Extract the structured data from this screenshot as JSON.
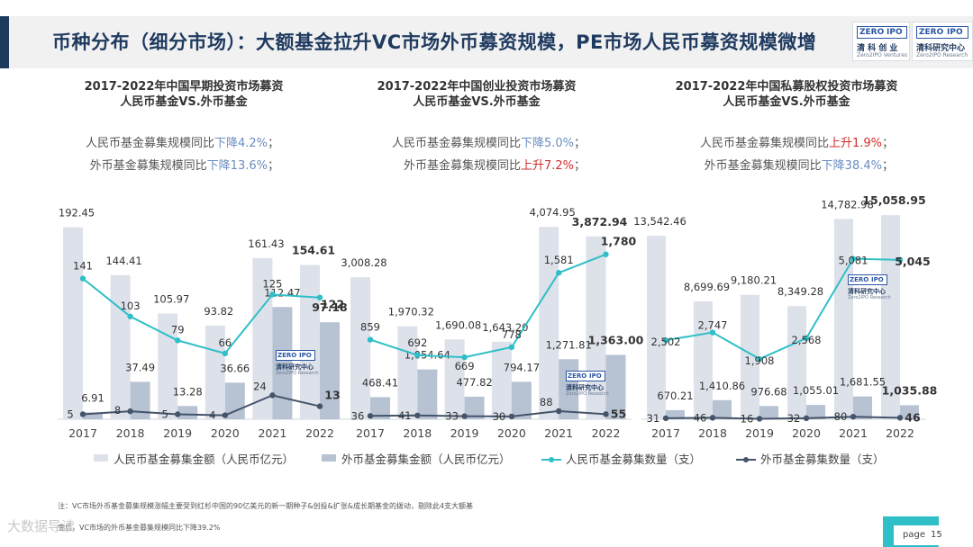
{
  "page": {
    "title": "币种分布（细分市场）：大额基金拉升VC市场外币募资规模，PE市场人民币募资规模微增",
    "page_label": "page",
    "page_number": "15",
    "watermark": "大数据导读"
  },
  "logos": {
    "left": {
      "word_a": "ZERO",
      "word_b": "IPO",
      "cn": "清 科 创 业",
      "en": "Zero2IPO Ventures"
    },
    "right": {
      "word_a": "ZERO",
      "word_b": "IPO",
      "cn": "清科研究中心",
      "en": "Zero2IPO Research"
    },
    "chart": {
      "word_a": "ZERO",
      "word_b": "IPO",
      "cn": "清科研究中心",
      "en": "Zero2IPO Research"
    }
  },
  "colors": {
    "bar_rmb": "#dde1ea",
    "bar_usd": "#b7c2d3",
    "line_rmb": "#2fbfc8",
    "line_usd": "#44546a",
    "title": "#1f3a5f",
    "up": "#d22c2c",
    "down": "#6a8dc1"
  },
  "legend": [
    {
      "label": "人民币基金募集金额（人民币亿元）"
    },
    {
      "label": "外币基金募集金额（人民币亿元）"
    },
    {
      "label": "人民币基金募集数量（支）"
    },
    {
      "label": "外币基金募集数量（支）"
    }
  ],
  "notes": {
    "note1": "注：VC市场外币基金募集规模涨幅主要受到红杉中国的90亿美元的新一期种子&创投&扩张&成长期基金的拨动，剔除此4支大额基",
    "note2": "金后，VC市场的外币基金募集规模同比下降39.2%"
  },
  "chart_data": [
    {
      "type": "bar",
      "title_line1": "2017-2022年中国早期投资市场募资",
      "title_line2": "人民币基金VS.外币基金",
      "stat1": {
        "prefix": "人民币基金募集规模同比",
        "change": "下降4.2%",
        "direction": "down",
        "suffix": "；"
      },
      "stat2": {
        "prefix": "外币基金募集规模同比",
        "change": "下降13.6%",
        "direction": "down",
        "suffix": "；"
      },
      "categories": [
        "2017",
        "2018",
        "2019",
        "2020",
        "2021",
        "2022"
      ],
      "series": [
        {
          "name": "人民币基金募集金额（人民币亿元）",
          "kind": "bar",
          "values": [
            192.45,
            144.41,
            105.97,
            93.82,
            161.43,
            154.61
          ],
          "labels": [
            "192.45",
            "144.41",
            "105.97",
            "93.82",
            "161.43",
            "154.61"
          ]
        },
        {
          "name": "外币基金募集金额（人民币亿元）",
          "kind": "bar",
          "values": [
            6.91,
            37.49,
            13.28,
            36.66,
            112.47,
            97.18
          ],
          "labels": [
            "6.91",
            "37.49",
            "13.28",
            "36.66",
            "112.47",
            "97.18"
          ]
        },
        {
          "name": "人民币基金募集数量（支）",
          "kind": "line",
          "values": [
            141,
            103,
            79,
            66,
            125,
            122
          ],
          "labels": [
            "141",
            "103",
            "79",
            "66",
            "125",
            "122"
          ]
        },
        {
          "name": "外币基金募集数量（支）",
          "kind": "line",
          "values": [
            5,
            8,
            5,
            4,
            24,
            13
          ],
          "labels": [
            "5",
            "8",
            "5",
            "4",
            "24",
            "13"
          ]
        }
      ],
      "bar_ylim": [
        0,
        220
      ],
      "line_ylim": [
        0,
        220
      ]
    },
    {
      "type": "bar",
      "title_line1": "2017-2022年中国创业投资市场募资",
      "title_line2": "人民币基金VS.外币基金",
      "stat1": {
        "prefix": "人民币基金募集规模同比",
        "change": "下降5.0%",
        "direction": "down",
        "suffix": "；"
      },
      "stat2": {
        "prefix": "外币基金募集规模同比",
        "change": "上升7.2%",
        "direction": "up",
        "suffix": "；"
      },
      "categories": [
        "2017",
        "2018",
        "2019",
        "2020",
        "2021",
        "2022"
      ],
      "series": [
        {
          "name": "人民币基金募集金额（人民币亿元）",
          "kind": "bar",
          "values": [
            3008.28,
            1970.32,
            1690.08,
            1643.2,
            4074.95,
            3872.94
          ],
          "labels": [
            "3,008.28",
            "1,970.32",
            "1,690.08",
            "1,643.20",
            "4,074.95",
            "3,872.94"
          ]
        },
        {
          "name": "外币基金募集金额（人民币亿元）",
          "kind": "bar",
          "values": [
            468.41,
            1054.64,
            477.82,
            794.17,
            1271.81,
            1363.0
          ],
          "labels": [
            "468.41",
            "1,054.64",
            "477.82",
            "794.17",
            "1,271.81",
            "1,363.00"
          ]
        },
        {
          "name": "人民币基金募集数量（支）",
          "kind": "line",
          "values": [
            859,
            692,
            669,
            778,
            1581,
            1780
          ],
          "labels": [
            "859",
            "692",
            "669",
            "778",
            "1,581",
            "1,780"
          ]
        },
        {
          "name": "外币基金募集数量（支）",
          "kind": "line",
          "values": [
            36,
            41,
            33,
            30,
            88,
            55
          ],
          "labels": [
            "36",
            "41",
            "33",
            "30",
            "88",
            "55"
          ]
        }
      ],
      "bar_ylim": [
        0,
        4650
      ],
      "line_ylim": [
        0,
        2370
      ]
    },
    {
      "type": "bar",
      "title_line1": "2017-2022年中国私募股权投资市场募资",
      "title_line2": "人民币基金VS.外币基金",
      "stat1": {
        "prefix": "人民币基金募集规模同比",
        "change": "上升1.9%",
        "direction": "up",
        "suffix": "；"
      },
      "stat2": {
        "prefix": "外币基金募集规模同比",
        "change": "下降38.4%",
        "direction": "down",
        "suffix": "；"
      },
      "categories": [
        "2017",
        "2018",
        "2019",
        "2020",
        "2021",
        "2022"
      ],
      "series": [
        {
          "name": "人民币基金募集金额（人民币亿元）",
          "kind": "bar",
          "values": [
            13542.46,
            8699.69,
            9180.21,
            8349.28,
            14782.98,
            15058.95
          ],
          "labels": [
            "13,542.46",
            "8,699.69",
            "9,180.21",
            "8,349.28",
            "14,782.98",
            "15,058.95"
          ]
        },
        {
          "name": "外币基金募集金额（人民币亿元）",
          "kind": "bar",
          "values": [
            670.21,
            1410.86,
            976.68,
            1055.01,
            1681.55,
            1035.88
          ],
          "labels": [
            "670.21",
            "1,410.86",
            "976.68",
            "1,055.01",
            "1,681.55",
            "1,035.88"
          ]
        },
        {
          "name": "人民币基金募集数量（支）",
          "kind": "line",
          "values": [
            2502,
            2747,
            1908,
            2568,
            5081,
            5045
          ],
          "labels": [
            "2,502",
            "2,747",
            "1,908",
            "2,568",
            "5,081",
            "5,045"
          ]
        },
        {
          "name": "外币基金募集数量（支）",
          "kind": "line",
          "values": [
            31,
            46,
            16,
            32,
            80,
            46
          ],
          "labels": [
            "31",
            "46",
            "16",
            "32",
            "80",
            "46"
          ]
        }
      ],
      "bar_ylim": [
        0,
        16200
      ],
      "line_ylim": [
        0,
        6950
      ]
    }
  ]
}
